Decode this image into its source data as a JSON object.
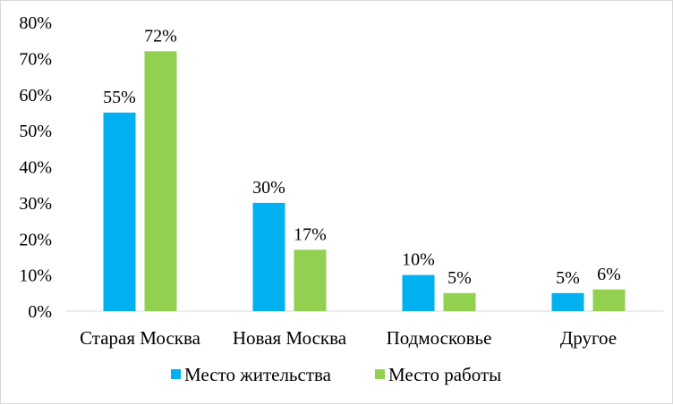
{
  "chart_data": {
    "type": "bar",
    "title": "",
    "xlabel": "",
    "ylabel": "",
    "categories": [
      "Старая Москва",
      "Новая Москва",
      "Подмосковье",
      "Другое"
    ],
    "series": [
      {
        "name": "Место жительства",
        "values": [
          55,
          30,
          10,
          5
        ],
        "labels": [
          "55%",
          "30%",
          "10%",
          "5%"
        ],
        "color": "#00b0f0"
      },
      {
        "name": "Место работы",
        "values": [
          72,
          17,
          5,
          6
        ],
        "labels": [
          "72%",
          "17%",
          "5%",
          "6%"
        ],
        "color": "#92d050"
      }
    ],
    "ylim": [
      0,
      80
    ],
    "yticks": [
      0,
      10,
      20,
      30,
      40,
      50,
      60,
      70,
      80
    ],
    "ytick_labels": [
      "0%",
      "10%",
      "20%",
      "30%",
      "40%",
      "50%",
      "60%",
      "70%",
      "80%"
    ],
    "grid": false,
    "legend_position": "bottom"
  }
}
